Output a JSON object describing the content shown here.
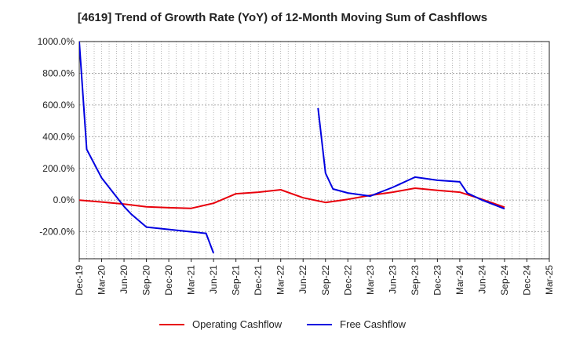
{
  "colors": {
    "operating": "#e8000b",
    "free": "#0000e0",
    "grid": "#9a9a9a",
    "axis": "#222222"
  },
  "chart_data": {
    "type": "line",
    "title": "[4619]  Trend of Growth Rate (YoY) of 12-Month Moving Sum of Cashflows",
    "xlabel": "",
    "ylabel": "",
    "ylim": [
      -370,
      1000
    ],
    "y_ticks": [
      1000,
      800,
      600,
      400,
      200,
      0,
      -200
    ],
    "y_tick_labels": [
      "1000.0%",
      "800.0%",
      "600.0%",
      "400.0%",
      "200.0%",
      "0.0%",
      "-200.0%"
    ],
    "x_range": [
      "2019-12",
      "2025-03"
    ],
    "x_ticks": [
      "2019-12",
      "2020-03",
      "2020-06",
      "2020-09",
      "2020-12",
      "2021-03",
      "2021-06",
      "2021-09",
      "2021-12",
      "2022-03",
      "2022-06",
      "2022-09",
      "2022-12",
      "2023-03",
      "2023-06",
      "2023-09",
      "2023-12",
      "2024-03",
      "2024-06",
      "2024-09",
      "2024-12",
      "2025-03"
    ],
    "x_tick_labels": [
      "Dec-19",
      "Mar-20",
      "Jun-20",
      "Sep-20",
      "Dec-20",
      "Mar-21",
      "Jun-21",
      "Sep-21",
      "Dec-21",
      "Mar-22",
      "Jun-22",
      "Sep-22",
      "Dec-22",
      "Mar-23",
      "Jun-23",
      "Sep-23",
      "Dec-23",
      "Mar-24",
      "Jun-24",
      "Sep-24",
      "Dec-24",
      "Mar-25"
    ],
    "grid": true,
    "legend_position": "bottom",
    "series": [
      {
        "name": "Operating Cashflow",
        "color_key": "operating",
        "points": [
          [
            "2019-12",
            0
          ],
          [
            "2020-03",
            -12
          ],
          [
            "2020-06",
            -25
          ],
          [
            "2020-09",
            -42
          ],
          [
            "2020-12",
            -48
          ],
          [
            "2021-03",
            -52
          ],
          [
            "2021-06",
            -20
          ],
          [
            "2021-09",
            40
          ],
          [
            "2021-12",
            50
          ],
          [
            "2022-03",
            65
          ],
          [
            "2022-06",
            15
          ],
          [
            "2022-09",
            -15
          ],
          [
            "2022-12",
            5
          ],
          [
            "2023-03",
            30
          ],
          [
            "2023-06",
            50
          ],
          [
            "2023-09",
            75
          ],
          [
            "2023-12",
            62
          ],
          [
            "2024-03",
            50
          ],
          [
            "2024-06",
            5
          ],
          [
            "2024-09",
            -45
          ]
        ]
      },
      {
        "name": "Free Cashflow",
        "color_key": "free",
        "segments": [
          [
            [
              "2019-12",
              1000
            ],
            [
              "2020-01",
              320
            ],
            [
              "2020-03",
              140
            ],
            [
              "2020-04",
              80
            ],
            [
              "2020-06",
              -40
            ],
            [
              "2020-07",
              -90
            ],
            [
              "2020-09",
              -170
            ],
            [
              "2020-12",
              -185
            ],
            [
              "2021-03",
              -200
            ],
            [
              "2021-05",
              -210
            ],
            [
              "2021-06",
              -335
            ]
          ],
          [
            [
              "2022-08",
              580
            ],
            [
              "2022-09",
              170
            ],
            [
              "2022-10",
              70
            ],
            [
              "2022-12",
              45
            ],
            [
              "2023-03",
              25
            ],
            [
              "2023-06",
              80
            ],
            [
              "2023-09",
              145
            ],
            [
              "2023-12",
              125
            ],
            [
              "2024-03",
              115
            ],
            [
              "2024-04",
              45
            ],
            [
              "2024-06",
              0
            ],
            [
              "2024-09",
              -55
            ]
          ]
        ]
      }
    ]
  }
}
